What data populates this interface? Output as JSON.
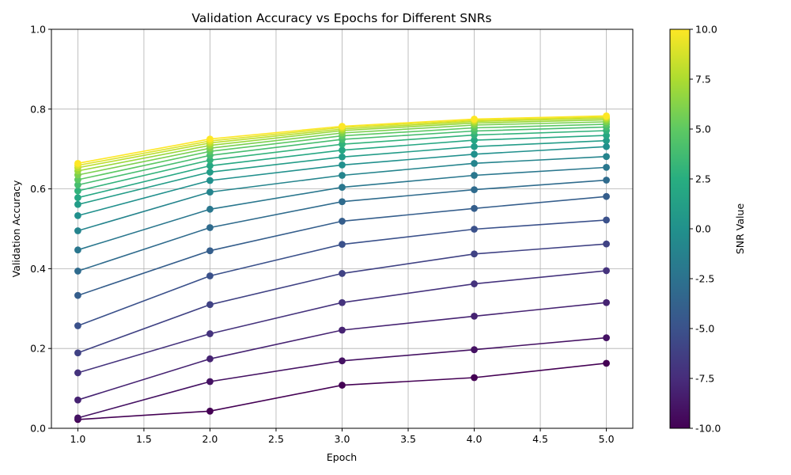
{
  "chart_data": {
    "type": "line",
    "title": "Validation Accuracy vs Epochs for Different SNRs",
    "xlabel": "Epoch",
    "ylabel": "Validation Accuracy",
    "xlim": [
      0.8,
      5.2
    ],
    "ylim": [
      0.0,
      1.0
    ],
    "xticks": [
      "1.0",
      "1.5",
      "2.0",
      "2.5",
      "3.0",
      "3.5",
      "4.0",
      "4.5",
      "5.0"
    ],
    "yticks": [
      "0.0",
      "0.2",
      "0.4",
      "0.6",
      "0.8",
      "1.0"
    ],
    "grid": true,
    "colormap": "viridis",
    "x": [
      1,
      2,
      3,
      4,
      5
    ],
    "series": [
      {
        "snr": -10,
        "values": [
          0.022,
          0.043,
          0.108,
          0.127,
          0.163
        ]
      },
      {
        "snr": -9,
        "values": [
          0.026,
          0.117,
          0.169,
          0.197,
          0.227
        ]
      },
      {
        "snr": -8,
        "values": [
          0.071,
          0.174,
          0.246,
          0.281,
          0.315
        ]
      },
      {
        "snr": -7,
        "values": [
          0.139,
          0.237,
          0.315,
          0.362,
          0.395
        ]
      },
      {
        "snr": -6,
        "values": [
          0.189,
          0.31,
          0.388,
          0.437,
          0.462
        ]
      },
      {
        "snr": -5,
        "values": [
          0.257,
          0.382,
          0.461,
          0.499,
          0.522
        ]
      },
      {
        "snr": -4,
        "values": [
          0.333,
          0.445,
          0.519,
          0.551,
          0.581
        ]
      },
      {
        "snr": -3,
        "values": [
          0.394,
          0.503,
          0.568,
          0.598,
          0.622
        ]
      },
      {
        "snr": -2,
        "values": [
          0.447,
          0.549,
          0.604,
          0.634,
          0.654
        ]
      },
      {
        "snr": -1,
        "values": [
          0.495,
          0.592,
          0.634,
          0.664,
          0.681
        ]
      },
      {
        "snr": 0,
        "values": [
          0.533,
          0.621,
          0.66,
          0.687,
          0.706
        ]
      },
      {
        "snr": 1,
        "values": [
          0.561,
          0.642,
          0.68,
          0.706,
          0.721
        ]
      },
      {
        "snr": 2,
        "values": [
          0.578,
          0.658,
          0.697,
          0.722,
          0.734
        ]
      },
      {
        "snr": 3,
        "values": [
          0.595,
          0.672,
          0.712,
          0.735,
          0.746
        ]
      },
      {
        "snr": 4,
        "values": [
          0.61,
          0.684,
          0.724,
          0.745,
          0.755
        ]
      },
      {
        "snr": 5,
        "values": [
          0.623,
          0.694,
          0.733,
          0.753,
          0.762
        ]
      },
      {
        "snr": 6,
        "values": [
          0.635,
          0.702,
          0.74,
          0.76,
          0.768
        ]
      },
      {
        "snr": 7,
        "values": [
          0.645,
          0.709,
          0.746,
          0.765,
          0.773
        ]
      },
      {
        "snr": 8,
        "values": [
          0.653,
          0.715,
          0.75,
          0.769,
          0.777
        ]
      },
      {
        "snr": 9,
        "values": [
          0.659,
          0.72,
          0.754,
          0.772,
          0.78
        ]
      },
      {
        "snr": 10,
        "values": [
          0.664,
          0.725,
          0.757,
          0.775,
          0.783
        ]
      }
    ],
    "colorbar": {
      "label": "SNR Value",
      "range": [
        -10,
        10
      ],
      "ticks": [
        "-10.0",
        "-7.5",
        "-5.0",
        "-2.5",
        "0.0",
        "2.5",
        "5.0",
        "7.5",
        "10.0"
      ]
    }
  }
}
